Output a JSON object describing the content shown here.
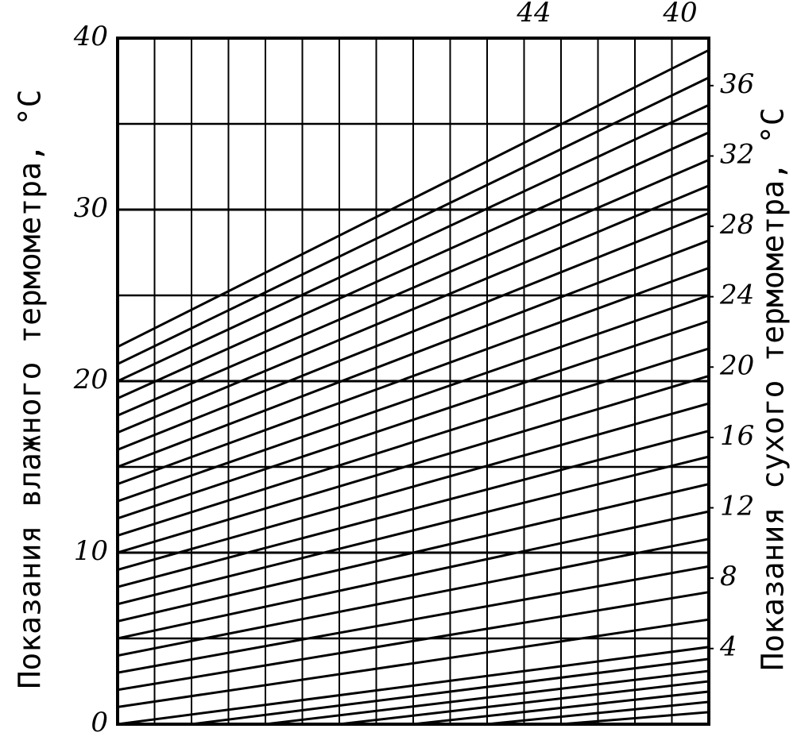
{
  "chart_data": {
    "type": "line",
    "y_label": "Показания влажного термометра, °C",
    "y2_label": "Показания сухого термометра, °C",
    "annotations": [
      "44",
      "40"
    ],
    "xlim": [
      0,
      16
    ],
    "ylim": [
      0,
      40
    ],
    "yticks": [
      0,
      10,
      20,
      30,
      40
    ],
    "y2lim": [
      -0.3,
      38.7
    ],
    "y2ticks": [
      4,
      8,
      12,
      16,
      20,
      24,
      28,
      32,
      36
    ],
    "grid": true,
    "color": "#000000",
    "series": [
      {
        "x": [
          0,
          16
        ],
        "values": [
          0,
          4.5
        ]
      },
      {
        "x": [
          0,
          16
        ],
        "values": [
          1,
          6.1
        ]
      },
      {
        "x": [
          0,
          16
        ],
        "values": [
          2,
          7.7
        ]
      },
      {
        "x": [
          0,
          16
        ],
        "values": [
          3,
          9.2
        ]
      },
      {
        "x": [
          0,
          16
        ],
        "values": [
          4,
          10.8
        ]
      },
      {
        "x": [
          0,
          16
        ],
        "values": [
          5,
          12.4
        ]
      },
      {
        "x": [
          0,
          16
        ],
        "values": [
          6,
          14
        ]
      },
      {
        "x": [
          0,
          16
        ],
        "values": [
          7,
          15.6
        ]
      },
      {
        "x": [
          0,
          16
        ],
        "values": [
          8,
          17.1
        ]
      },
      {
        "x": [
          0,
          16
        ],
        "values": [
          9,
          18.7
        ]
      },
      {
        "x": [
          0,
          16
        ],
        "values": [
          10,
          20.3
        ]
      },
      {
        "x": [
          0,
          16
        ],
        "values": [
          11,
          21.9
        ]
      },
      {
        "x": [
          0,
          16
        ],
        "values": [
          12,
          23.5
        ]
      },
      {
        "x": [
          0,
          16
        ],
        "values": [
          13,
          25
        ]
      },
      {
        "x": [
          0,
          16
        ],
        "values": [
          14,
          26.6
        ]
      },
      {
        "x": [
          0,
          16
        ],
        "values": [
          15,
          28.2
        ]
      },
      {
        "x": [
          0,
          16
        ],
        "values": [
          16,
          29.8
        ]
      },
      {
        "x": [
          0,
          16
        ],
        "values": [
          17,
          31.4
        ]
      },
      {
        "x": [
          0,
          16
        ],
        "values": [
          18,
          32.9
        ]
      },
      {
        "x": [
          0,
          16
        ],
        "values": [
          19,
          34.5
        ]
      },
      {
        "x": [
          0,
          16
        ],
        "values": [
          20,
          36.1
        ]
      },
      {
        "x": [
          0,
          16
        ],
        "values": [
          21,
          37.7
        ]
      },
      {
        "x": [
          0,
          16
        ],
        "values": [
          22,
          39.3
        ]
      },
      {
        "x": [
          2,
          16
        ],
        "values": [
          0,
          3.8
        ]
      },
      {
        "x": [
          4,
          16
        ],
        "values": [
          0,
          3.1
        ]
      },
      {
        "x": [
          6,
          16
        ],
        "values": [
          0,
          2.5
        ]
      },
      {
        "x": [
          8,
          16
        ],
        "values": [
          0,
          1.9
        ]
      },
      {
        "x": [
          10,
          16
        ],
        "values": [
          0,
          1.3
        ]
      },
      {
        "x": [
          12,
          16
        ],
        "values": [
          0,
          0.7
        ]
      }
    ]
  }
}
